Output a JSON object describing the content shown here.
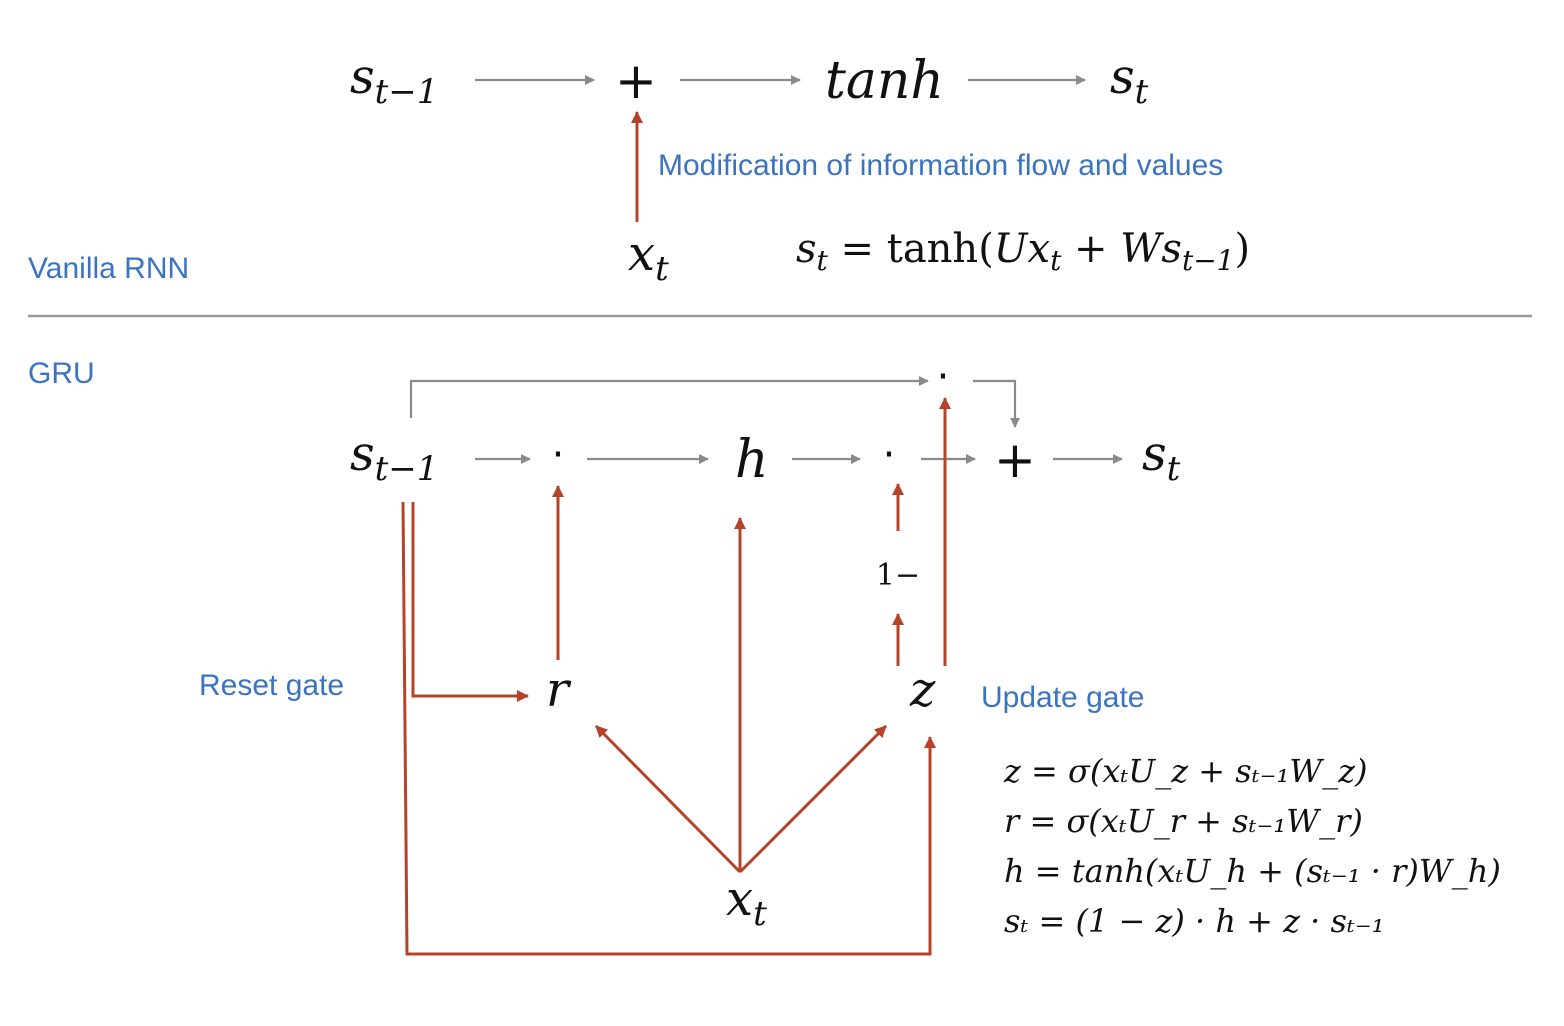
{
  "colors": {
    "flow": "#8a8a8a",
    "input": "#b5432a",
    "label": "#3a73c0",
    "divider": "#999999",
    "text": "#111111"
  },
  "vanilla": {
    "section_label": "Vanilla RNN",
    "annotation": "Modification of information flow and values",
    "nodes": {
      "s_prev_base": "s",
      "s_prev_sub": "t−1",
      "plus": "+",
      "tanh": "tanh",
      "s_next_base": "s",
      "s_next_sub": "t",
      "x_base": "x",
      "x_sub": "t"
    },
    "equation": {
      "lhs_base": "s",
      "lhs_sub": "t",
      "eq": " = tanh(",
      "u": "Ux",
      "u_sub": "t",
      "plus": " + ",
      "w": "Ws",
      "w_sub": "t−1",
      "close": ")"
    }
  },
  "gru": {
    "section_label": "GRU",
    "reset_label": "Reset gate",
    "update_label": "Update gate",
    "nodes": {
      "s_prev_base": "s",
      "s_prev_sub": "t−1",
      "dot": "·",
      "h": "h",
      "plus": "+",
      "s_next_base": "s",
      "s_next_sub": "t",
      "one_minus": "1−",
      "r": "r",
      "z": "z",
      "x_base": "x",
      "x_sub": "t"
    },
    "equations": [
      "z = σ(xₜU_z + sₜ₋₁W_z)",
      "r = σ(xₜU_r + sₜ₋₁W_r)",
      "h = tanh(xₜU_h + (sₜ₋₁ · r)W_h)",
      "sₜ = (1 − z) · h + z · sₜ₋₁"
    ]
  }
}
